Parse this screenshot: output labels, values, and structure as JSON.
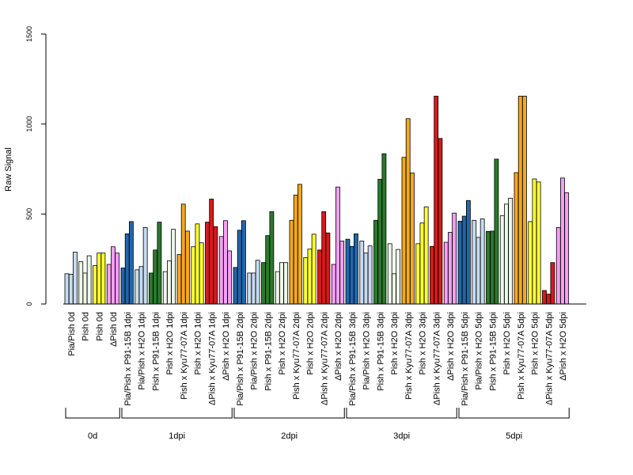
{
  "chart_data": {
    "type": "bar",
    "title": "",
    "xlabel": "",
    "ylabel": "Raw Signal",
    "ylim": [
      0,
      1500
    ],
    "yticks": [
      0,
      500,
      1000,
      1500
    ],
    "grid": false,
    "legend": "none",
    "categories": [
      "Pia/Pish 0d",
      "Pish 0d",
      "Pish 0d",
      "ΔPish 0d",
      "Pia/Pish x P91-15B 1dpi",
      "Pia/Pish x H2O 1dpi",
      "Pish x P91-15B 1dpi",
      "Pish x H2O 1dpi",
      "Pish x Kyu77-07A 1dpi",
      "Pish x H2O 1dpi",
      "ΔPish x Kyu77-07A 1dpi",
      "ΔPish x H2O 1dpi",
      "Pia/Pish x P91-15B 2dpi",
      "Pia/Pish x H2O 2dpi",
      "Pish x P91-15B 2dpi",
      "Pish x H2O 2dpi",
      "Pish x Kyu77-07A 2dpi",
      "Pish x H2O 2dpi",
      "ΔPish x Kyu77-07A 2dpi",
      "ΔPish x H2O 2dpi",
      "Pia/Pish x P91-15B 3dpi",
      "Pia/Pish x H2O 3dpi",
      "Pish x P91-15B 3dpi",
      "Pish x H2O 3dpi",
      "Pish x Kyu77-07A 3dpi",
      "Pish x H2O 3dpi",
      "ΔPish x Kyu77-07A 3dpi",
      "ΔPish x H2O 3dpi",
      "Pia/Pish x P91-15B 5dpi",
      "Pia/Pish x H2O 5dpi",
      "Pish x P91-15B 5dpi",
      "Pish x H2O 5dpi",
      "Pish x Kyu77-07A 5dpi",
      "Pish x H2O 5dpi",
      "ΔPish x Kyu77-07A 5dpi",
      "ΔPish x H2O 5dpi"
    ],
    "bar_colors": [
      "#c6dbef",
      "#edf8e9",
      "#ffff33",
      "#f59ff5",
      "#2166ac",
      "#c6dbef",
      "#2a7a2a",
      "#edf8e9",
      "#f5a81e",
      "#ffff33",
      "#d7191c",
      "#f59ff5",
      "#2166ac",
      "#c6dbef",
      "#2a7a2a",
      "#edf8e9",
      "#f5a81e",
      "#ffff33",
      "#d7191c",
      "#f59ff5",
      "#2166ac",
      "#c6dbef",
      "#2a7a2a",
      "#edf8e9",
      "#f5a81e",
      "#ffff33",
      "#d7191c",
      "#f59ff5",
      "#2166ac",
      "#c6dbef",
      "#2a7a2a",
      "#edf8e9",
      "#f5a81e",
      "#ffff33",
      "#d7191c",
      "#f59ff5"
    ],
    "replicates": [
      [
        168,
        165,
        288
      ],
      [
        235,
        172,
        268
      ],
      [
        213,
        283,
        283
      ],
      [
        220,
        318,
        283
      ],
      [
        200,
        390,
        458
      ],
      [
        190,
        208,
        425
      ],
      [
        172,
        300,
        455
      ],
      [
        180,
        240,
        415
      ],
      [
        275,
        555,
        405
      ],
      [
        318,
        445,
        340
      ],
      [
        455,
        583,
        430
      ],
      [
        375,
        463,
        295
      ],
      [
        203,
        410,
        463
      ],
      [
        172,
        172,
        243
      ],
      [
        230,
        380,
        513
      ],
      [
        180,
        230,
        230
      ],
      [
        465,
        605,
        665
      ],
      [
        258,
        305,
        388
      ],
      [
        300,
        513,
        395
      ],
      [
        220,
        650,
        350
      ],
      [
        360,
        320,
        390
      ],
      [
        350,
        283,
        323
      ],
      [
        465,
        693,
        835
      ],
      [
        335,
        168,
        303
      ],
      [
        815,
        1030,
        728
      ],
      [
        335,
        450,
        540
      ],
      [
        320,
        1155,
        920
      ],
      [
        343,
        398,
        505
      ],
      [
        460,
        488,
        575
      ],
      [
        465,
        370,
        473
      ],
      [
        403,
        405,
        805
      ],
      [
        490,
        555,
        588
      ],
      [
        730,
        1155,
        1155
      ],
      [
        458,
        695,
        678
      ],
      [
        75,
        55,
        230
      ],
      [
        425,
        700,
        618
      ]
    ],
    "groups": [
      {
        "label": "0d",
        "count": 4
      },
      {
        "label": "1dpi",
        "count": 8
      },
      {
        "label": "2dpi",
        "count": 8
      },
      {
        "label": "3dpi",
        "count": 8
      },
      {
        "label": "5dpi",
        "count": 8
      }
    ]
  }
}
